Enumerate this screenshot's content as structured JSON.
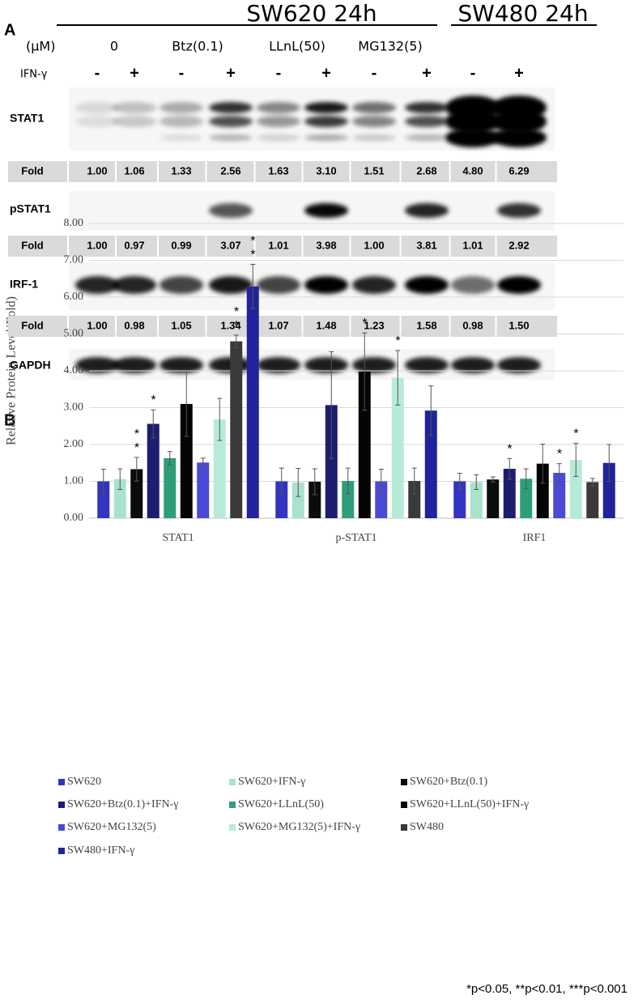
{
  "figure_a": {
    "label": "A",
    "groups": [
      "SW620 24h",
      "SW480 24h"
    ],
    "unit": "(μM)",
    "treatments": [
      "0",
      "Btz(0.1)",
      "LLnL(50)",
      "MG132(5)"
    ],
    "ifn_label": "IFN-γ",
    "ifn": [
      "-",
      "+",
      "-",
      "+",
      "-",
      "+",
      "-",
      "+",
      "-",
      "+"
    ],
    "rows": [
      {
        "name": "STAT1",
        "fold_label": "Fold",
        "folds": [
          "1.00",
          "1.06",
          "1.33",
          "2.56",
          "1.63",
          "3.10",
          "1.51",
          "2.68",
          "4.80",
          "6.29"
        ]
      },
      {
        "name": "pSTAT1",
        "fold_label": "Fold",
        "folds": [
          "1.00",
          "0.97",
          "0.99",
          "3.07",
          "1.01",
          "3.98",
          "1.00",
          "3.81",
          "1.01",
          "2.92"
        ]
      },
      {
        "name": "IRF-1",
        "fold_label": "Fold",
        "folds": [
          "1.00",
          "0.98",
          "1.05",
          "1.34",
          "1.07",
          "1.48",
          "1.23",
          "1.58",
          "0.98",
          "1.50"
        ]
      },
      {
        "name": "GAPDH"
      }
    ]
  },
  "figure_b_label": "B",
  "chart_data": {
    "type": "bar",
    "y_label": "Relative Protein Level(Fold)",
    "categories": [
      "STAT1",
      "p-STAT1",
      "IRF1"
    ],
    "ylim": [
      0,
      8
    ],
    "yticks": [
      {
        "value": 0,
        "label": "0.00"
      },
      {
        "value": 1,
        "label": "1.00"
      },
      {
        "value": 2,
        "label": "2.00"
      },
      {
        "value": 3,
        "label": "3.00"
      },
      {
        "value": 4,
        "label": "4.00"
      },
      {
        "value": 5,
        "label": "5.00"
      },
      {
        "value": 6,
        "label": "6.00"
      },
      {
        "value": 7,
        "label": "7.00"
      },
      {
        "value": 8,
        "label": "8.00"
      }
    ],
    "grid": true,
    "legend": "bottom",
    "series": [
      {
        "name": "SW620",
        "color": "#3434c2",
        "values": [
          1.0,
          1.0,
          1.0
        ],
        "errors": [
          0.33,
          0.36,
          0.22
        ],
        "significance": [
          null,
          null,
          null
        ]
      },
      {
        "name": "SW620+IFN-γ",
        "color": "#a9e2cd",
        "values": [
          1.06,
          0.97,
          0.98
        ],
        "errors": [
          0.28,
          0.38,
          0.2
        ],
        "significance": [
          null,
          null,
          null
        ]
      },
      {
        "name": "SW620+Btz(0.1)",
        "color": "#0c0c0c",
        "values": [
          1.33,
          0.99,
          1.05
        ],
        "errors": [
          0.32,
          0.35,
          0.07
        ],
        "significance": [
          "**",
          null,
          null
        ]
      },
      {
        "name": "SW620+Btz(0.1)+IFN-γ",
        "color": "#1d1d70",
        "values": [
          2.56,
          3.07,
          1.34
        ],
        "errors": [
          0.38,
          1.45,
          0.28
        ],
        "significance": [
          "*",
          null,
          "*"
        ]
      },
      {
        "name": "SW620+LLnL(50)",
        "color": "#2e9e78",
        "values": [
          1.63,
          1.01,
          1.07
        ],
        "errors": [
          0.18,
          0.35,
          0.27
        ],
        "significance": [
          null,
          null,
          null
        ]
      },
      {
        "name": "SW620+LLnL(50)+IFN-γ",
        "color": "#050505",
        "values": [
          3.1,
          3.98,
          1.48
        ],
        "errors": [
          0.88,
          1.05,
          0.53
        ],
        "significance": [
          null,
          "*",
          null
        ]
      },
      {
        "name": "SW620+MG132(5)",
        "color": "#4a4ad6",
        "values": [
          1.51,
          1.0,
          1.23
        ],
        "errors": [
          0.12,
          0.33,
          0.25
        ],
        "significance": [
          null,
          null,
          "*"
        ]
      },
      {
        "name": "SW620+MG132(5)+IFN-γ",
        "color": "#b6ebd7",
        "values": [
          2.68,
          3.81,
          1.58
        ],
        "errors": [
          0.57,
          0.74,
          0.45
        ],
        "significance": [
          null,
          "*",
          "*"
        ]
      },
      {
        "name": "SW480",
        "color": "#3a3a3a",
        "values": [
          4.8,
          1.01,
          0.98
        ],
        "errors": [
          0.17,
          0.35,
          0.1
        ],
        "significance": [
          "**",
          null,
          null
        ]
      },
      {
        "name": "SW480+IFN-γ",
        "color": "#22229c",
        "values": [
          6.29,
          2.92,
          1.5
        ],
        "errors": [
          0.6,
          0.67,
          0.5
        ],
        "significance": [
          "**",
          null,
          null
        ]
      }
    ],
    "note": "*p<0.05, **p<0.01, ***p<0.001"
  }
}
